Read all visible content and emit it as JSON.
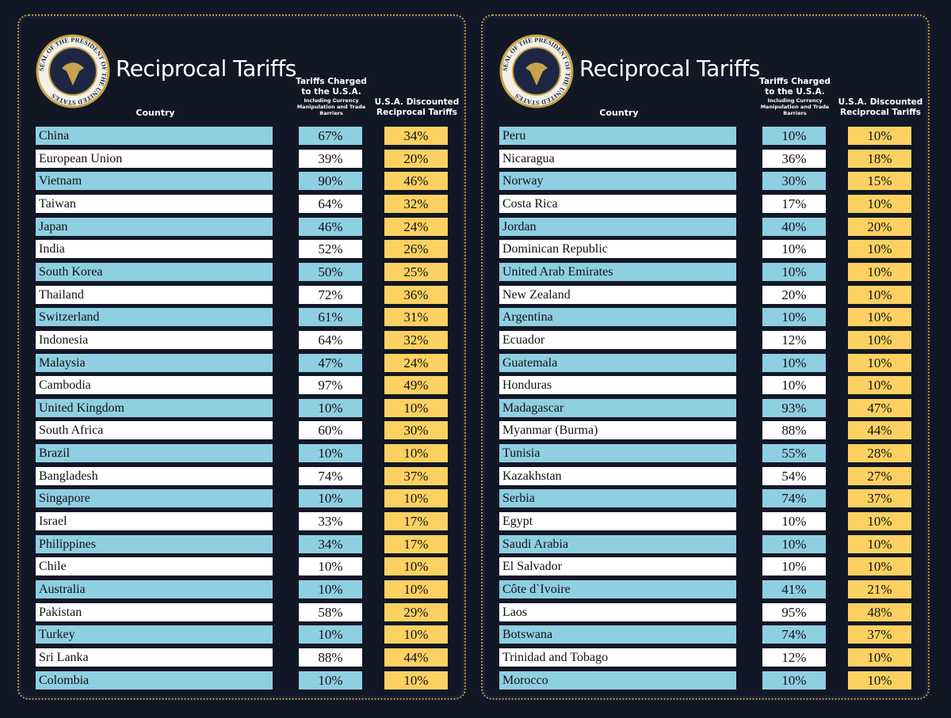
{
  "panels": [
    {
      "seal": "SEAL OF THE PRESIDENT OF THE UNITED STATES",
      "title": "Reciprocal Tariffs",
      "headers": {
        "country": "Country",
        "charged": "Tariffs Charged to the U.S.A.",
        "charged_note": "Including Currency Manipulation and Trade Barriers",
        "discounted": "U.S.A. Discounted Reciprocal Tariffs"
      },
      "rows": [
        [
          "China",
          "67%",
          "34%"
        ],
        [
          "European Union",
          "39%",
          "20%"
        ],
        [
          "Vietnam",
          "90%",
          "46%"
        ],
        [
          "Taiwan",
          "64%",
          "32%"
        ],
        [
          "Japan",
          "46%",
          "24%"
        ],
        [
          "India",
          "52%",
          "26%"
        ],
        [
          "South Korea",
          "50%",
          "25%"
        ],
        [
          "Thailand",
          "72%",
          "36%"
        ],
        [
          "Switzerland",
          "61%",
          "31%"
        ],
        [
          "Indonesia",
          "64%",
          "32%"
        ],
        [
          "Malaysia",
          "47%",
          "24%"
        ],
        [
          "Cambodia",
          "97%",
          "49%"
        ],
        [
          "United Kingdom",
          "10%",
          "10%"
        ],
        [
          "South Africa",
          "60%",
          "30%"
        ],
        [
          "Brazil",
          "10%",
          "10%"
        ],
        [
          "Bangladesh",
          "74%",
          "37%"
        ],
        [
          "Singapore",
          "10%",
          "10%"
        ],
        [
          "Israel",
          "33%",
          "17%"
        ],
        [
          "Philippines",
          "34%",
          "17%"
        ],
        [
          "Chile",
          "10%",
          "10%"
        ],
        [
          "Australia",
          "10%",
          "10%"
        ],
        [
          "Pakistan",
          "58%",
          "29%"
        ],
        [
          "Turkey",
          "10%",
          "10%"
        ],
        [
          "Sri Lanka",
          "88%",
          "44%"
        ],
        [
          "Colombia",
          "10%",
          "10%"
        ]
      ]
    },
    {
      "seal": "SEAL OF THE PRESIDENT OF THE UNITED STATES",
      "title": "Reciprocal Tariffs",
      "headers": {
        "country": "Country",
        "charged": "Tariffs Charged to the U.S.A.",
        "charged_note": "Including Currency Manipulation and Trade Barriers",
        "discounted": "U.S.A. Discounted Reciprocal Tariffs"
      },
      "rows": [
        [
          "Peru",
          "10%",
          "10%"
        ],
        [
          "Nicaragua",
          "36%",
          "18%"
        ],
        [
          "Norway",
          "30%",
          "15%"
        ],
        [
          "Costa Rica",
          "17%",
          "10%"
        ],
        [
          "Jordan",
          "40%",
          "20%"
        ],
        [
          "Dominican Republic",
          "10%",
          "10%"
        ],
        [
          "United Arab Emirates",
          "10%",
          "10%"
        ],
        [
          "New Zealand",
          "20%",
          "10%"
        ],
        [
          "Argentina",
          "10%",
          "10%"
        ],
        [
          "Ecuador",
          "12%",
          "10%"
        ],
        [
          "Guatemala",
          "10%",
          "10%"
        ],
        [
          "Honduras",
          "10%",
          "10%"
        ],
        [
          "Madagascar",
          "93%",
          "47%"
        ],
        [
          "Myanmar (Burma)",
          "88%",
          "44%"
        ],
        [
          "Tunisia",
          "55%",
          "28%"
        ],
        [
          "Kazakhstan",
          "54%",
          "27%"
        ],
        [
          "Serbia",
          "74%",
          "37%"
        ],
        [
          "Egypt",
          "10%",
          "10%"
        ],
        [
          "Saudi Arabia",
          "10%",
          "10%"
        ],
        [
          "El Salvador",
          "10%",
          "10%"
        ],
        [
          "Côte d`Ivoire",
          "41%",
          "21%"
        ],
        [
          "Laos",
          "95%",
          "48%"
        ],
        [
          "Botswana",
          "74%",
          "37%"
        ],
        [
          "Trinidad and Tobago",
          "12%",
          "10%"
        ],
        [
          "Morocco",
          "10%",
          "10%"
        ]
      ]
    }
  ]
}
